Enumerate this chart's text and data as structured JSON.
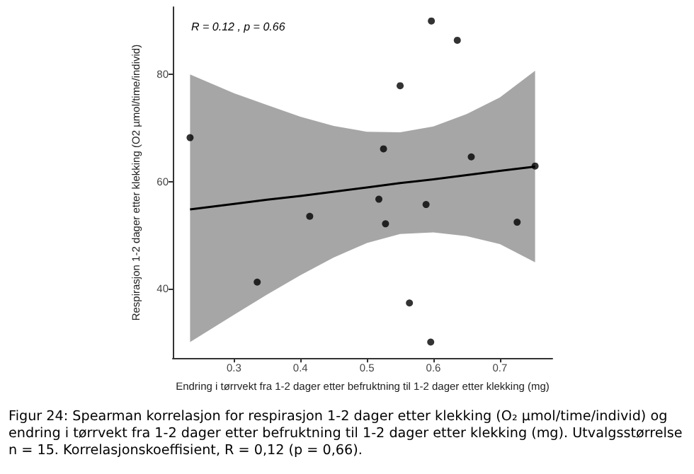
{
  "chart_data": {
    "type": "scatter",
    "xlabel": "Endring i tørrvekt fra 1-2 dager etter befruktning til 1-2 dager etter klekking (mg)",
    "ylabel": "Respirasjon 1-2 dager etter klekking (O2 µmol/time/individ)",
    "annotations": [
      "R = 0.12 , p = 0.66",
      "Figur 24: Spearman korrelasjon for respirasjon 1-2 dager etter klekking (O₂ µmol/time/individ) og endring i tørrvekt fra 1-2 dager etter befruktning til 1-2 dager etter klekking (mg). Utvalgsstørrelse n = 15. Korrelasjonskoeffisient, R = 0,12 (p = 0,66)."
    ],
    "xlim": [
      0.208,
      0.779
    ],
    "ylim": [
      27,
      92.6
    ],
    "xticks": [
      0.3,
      0.4,
      0.5,
      0.6,
      0.7
    ],
    "yticks": [
      40,
      60,
      80
    ],
    "grid": false,
    "series": [
      {
        "type": "line",
        "color": "#000000",
        "marker": "none",
        "line_style": "solid",
        "x": [
          0.234,
          0.3,
          0.35,
          0.4,
          0.45,
          0.5,
          0.55,
          0.6,
          0.65,
          0.7,
          0.753
        ],
        "values": [
          54.8,
          55.8,
          56.6,
          57.3,
          58.1,
          58.9,
          59.7,
          60.4,
          61.2,
          62.0,
          62.8
        ],
        "lower": [
          30.0,
          35.1,
          38.9,
          42.5,
          45.8,
          48.5,
          50.2,
          50.5,
          49.8,
          48.3,
          44.9
        ],
        "upper": [
          80.0,
          76.5,
          74.3,
          72.1,
          70.4,
          69.3,
          69.2,
          70.3,
          72.6,
          75.7,
          80.7
        ]
      },
      {
        "color": "#000000",
        "marker": "circle",
        "x": [
          0.234,
          0.525,
          0.55,
          0.597,
          0.636,
          0.657,
          0.753,
          0.518,
          0.414,
          0.528,
          0.589,
          0.726,
          0.335,
          0.564,
          0.596
        ],
        "values": [
          68.2,
          66.1,
          77.9,
          90.0,
          86.4,
          64.6,
          62.9,
          56.7,
          53.5,
          52.1,
          55.7,
          52.4,
          41.2,
          37.3,
          30.0
        ]
      }
    ]
  }
}
